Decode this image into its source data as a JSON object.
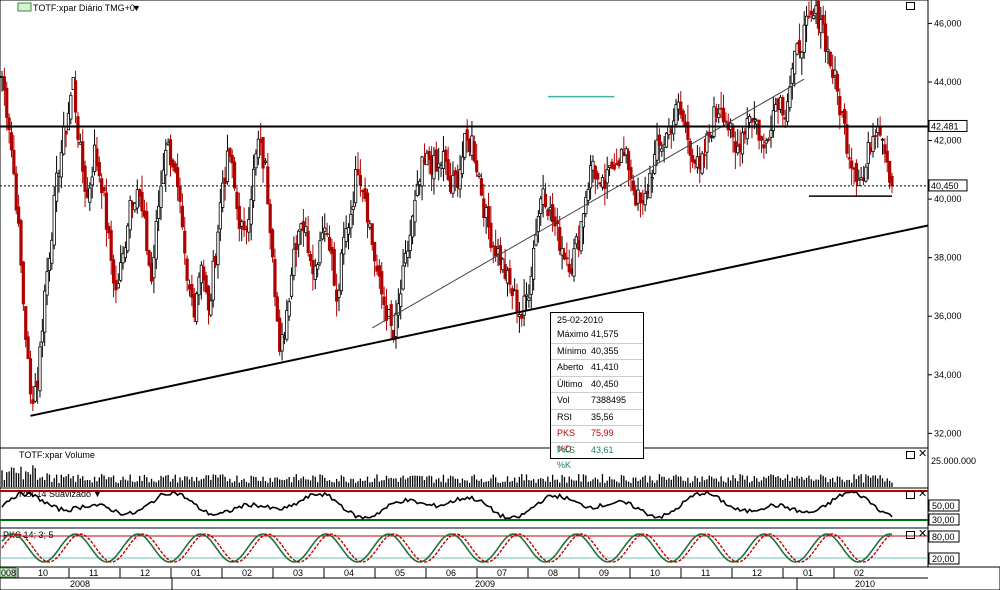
{
  "header": {
    "title": "TOTF:xpar Diário TMG+0",
    "dropdown_glyph": "▼",
    "close_glyph": "□"
  },
  "panels": {
    "volume": {
      "title": "TOTF:xpar Volume",
      "axis_label": "25.000.000"
    },
    "rsi": {
      "title": "RSI 14 Suavizado",
      "labels": [
        "50,00",
        "30,00"
      ]
    },
    "pks": {
      "title": "PKS 14; 3; 5",
      "labels": [
        "80,00",
        "20,00"
      ]
    }
  },
  "price_axis": {
    "ticks": [
      "46,000",
      "44,000",
      "42,000",
      "40,000",
      "38,000",
      "36,000",
      "34,000",
      "32,000"
    ],
    "marker_42": "42,481",
    "marker_40": "40,450"
  },
  "time_axis": {
    "months": [
      "10",
      "11",
      "12",
      "01",
      "02",
      "03",
      "04",
      "05",
      "06",
      "07",
      "08",
      "09",
      "10",
      "11",
      "12",
      "01",
      "02"
    ],
    "years": [
      "2008",
      "2009",
      "2010"
    ],
    "corner": "008"
  },
  "tooltip": {
    "date": "25-02-2010",
    "rows": [
      {
        "k": "Máximo",
        "v": "41,575",
        "color": "#000000"
      },
      {
        "k": "Mínimo",
        "v": "40,355",
        "color": "#000000"
      },
      {
        "k": "Aberto",
        "v": "41,410",
        "color": "#000000"
      },
      {
        "k": "Último",
        "v": "40,450",
        "color": "#000000"
      },
      {
        "k": "Vol",
        "v": "7388495",
        "color": "#000000"
      },
      {
        "k": "RSI",
        "v": "35,56",
        "color": "#000000"
      },
      {
        "k": "PKS %D",
        "v": "75,99",
        "color": "#c00000"
      },
      {
        "k": "PKS %K",
        "v": "43,61",
        "color": "#208060"
      }
    ]
  },
  "chart_data": {
    "type": "candlestick",
    "title": "TOTF:xpar Diário TMG+0",
    "ylim": [
      31.5,
      46.8
    ],
    "resistance": 42.481,
    "last_close": 40.45,
    "closes": [
      44.2,
      42.6,
      40.0,
      36.5,
      33.2,
      33.8,
      36.8,
      39.0,
      41.2,
      42.5,
      44.0,
      41.5,
      40.0,
      41.6,
      40.6,
      38.5,
      36.8,
      38.0,
      40.0,
      40.4,
      39.0,
      37.2,
      39.8,
      41.9,
      41.3,
      39.5,
      37.0,
      36.4,
      38.0,
      36.0,
      38.2,
      40.6,
      41.5,
      39.7,
      38.6,
      40.3,
      41.9,
      41.0,
      38.4,
      34.5,
      36.2,
      38.3,
      39.4,
      38.5,
      37.6,
      39.2,
      38.7,
      36.3,
      38.5,
      39.6,
      41.2,
      40.2,
      38.5,
      37.0,
      36.2,
      35.2,
      36.8,
      38.3,
      39.7,
      41.0,
      41.4,
      40.9,
      41.4,
      40.3,
      40.8,
      41.8,
      42.0,
      40.8,
      39.3,
      38.5,
      38.0,
      37.2,
      36.6,
      36.0,
      37.0,
      39.0,
      40.5,
      39.5,
      38.8,
      38.2,
      37.8,
      38.7,
      40.2,
      41.3,
      40.2,
      40.6,
      41.4,
      41.5,
      41.2,
      40.1,
      39.6,
      40.8,
      41.6,
      42.0,
      42.6,
      43.1,
      42.4,
      41.6,
      40.8,
      41.9,
      42.8,
      43.3,
      42.5,
      41.5,
      42.3,
      43.0,
      42.6,
      41.6,
      42.8,
      43.5,
      43.1,
      44.3,
      45.3,
      45.8,
      46.2,
      46.3,
      45.0,
      44.0,
      42.8,
      41.6,
      41.0,
      40.6,
      42.0,
      42.8,
      41.9,
      40.45
    ],
    "volume_max": 25000000,
    "rsi_levels": [
      70,
      30
    ],
    "pks_levels": [
      80,
      20
    ],
    "pks_d_last": 75.99,
    "pks_k_last": 43.61,
    "rsi_last": 35.56
  },
  "colors": {
    "up": "#000000",
    "down": "#b00000",
    "rsi_upper": "#c00000",
    "rsi_lower": "#007000",
    "pks_d": "#c00000",
    "pks_k": "#207040",
    "band": "#70c0b0"
  }
}
